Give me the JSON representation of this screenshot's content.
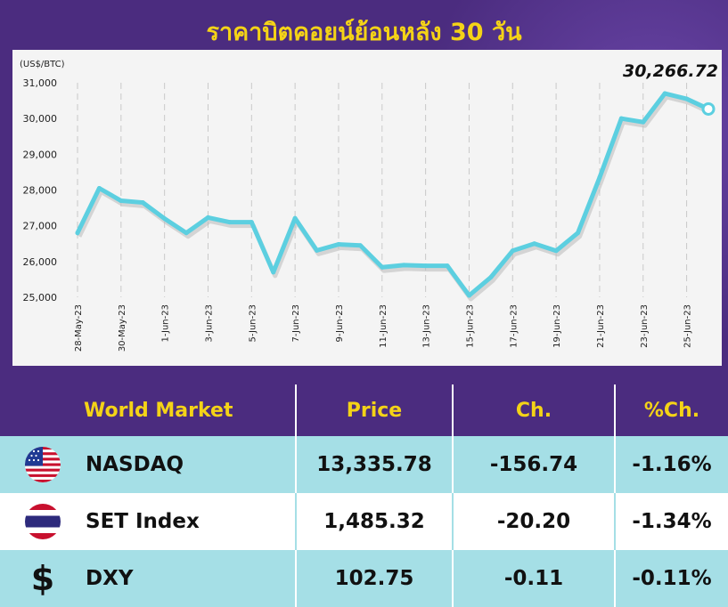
{
  "title": "ราคาบิตคอยน์ย้อนหลัง 30 วัน",
  "chart_data": {
    "type": "line",
    "unit_label": "(US$/BTC)",
    "last_value_label": "30,266.72",
    "ylim": [
      25000,
      31000
    ],
    "y_ticks": [
      "25,000",
      "26,000",
      "27,000",
      "28,000",
      "29,000",
      "30,000",
      "31,000"
    ],
    "x_tick_labels": [
      "28-May-23",
      "30-May-23",
      "1-Jun-23",
      "3-Jun-23",
      "5-Jun-23",
      "7-Jun-23",
      "9-Jun-23",
      "11-Jun-23",
      "13-Jun-23",
      "15-Jun-23",
      "17-Jun-23",
      "19-Jun-23",
      "21-Jun-23",
      "23-Jun-23",
      "25-Jun-23"
    ],
    "grid": "vertical",
    "color": "#5ccfe0",
    "x": [
      "28-May-23",
      "29-May-23",
      "30-May-23",
      "31-May-23",
      "1-Jun-23",
      "2-Jun-23",
      "3-Jun-23",
      "4-Jun-23",
      "5-Jun-23",
      "6-Jun-23",
      "7-Jun-23",
      "8-Jun-23",
      "9-Jun-23",
      "10-Jun-23",
      "11-Jun-23",
      "12-Jun-23",
      "13-Jun-23",
      "14-Jun-23",
      "15-Jun-23",
      "16-Jun-23",
      "17-Jun-23",
      "18-Jun-23",
      "19-Jun-23",
      "20-Jun-23",
      "21-Jun-23",
      "22-Jun-23",
      "23-Jun-23",
      "24-Jun-23",
      "25-Jun-23",
      "26-Jun-23"
    ],
    "values": [
      26800,
      28050,
      27700,
      27650,
      27200,
      26800,
      27230,
      27100,
      27100,
      25700,
      27210,
      26310,
      26480,
      26450,
      25840,
      25900,
      25880,
      25880,
      25050,
      25560,
      26300,
      26500,
      26300,
      26800,
      28350,
      30000,
      29900,
      30700,
      30550,
      30266.72
    ]
  },
  "table": {
    "headers": [
      "World Market",
      "Price",
      "Ch.",
      "%Ch."
    ],
    "rows": [
      {
        "icon": "us-flag-icon",
        "name": "NASDAQ",
        "price": "13,335.78",
        "ch": "-156.74",
        "pch": "-1.16%"
      },
      {
        "icon": "thai-flag-icon",
        "name": "SET Index",
        "price": "1,485.32",
        "ch": "-20.20",
        "pch": "-1.34%"
      },
      {
        "icon": "dollar-icon",
        "symbol": "$",
        "name": "DXY",
        "price": "102.75",
        "ch": "-0.11",
        "pch": "-0.11%"
      }
    ]
  }
}
